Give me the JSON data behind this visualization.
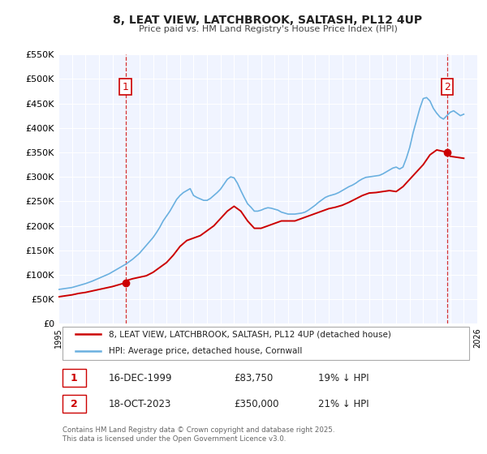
{
  "title": "8, LEAT VIEW, LATCHBROOK, SALTASH, PL12 4UP",
  "subtitle": "Price paid vs. HM Land Registry's House Price Index (HPI)",
  "background_color": "#ffffff",
  "plot_bg_color": "#f0f4ff",
  "grid_color": "#ffffff",
  "hpi_color": "#6ab0e0",
  "price_color": "#cc0000",
  "ylim": [
    0,
    550000
  ],
  "xlim_start": 1995.0,
  "xlim_end": 2026.0,
  "yticks": [
    0,
    50000,
    100000,
    150000,
    200000,
    250000,
    300000,
    350000,
    400000,
    450000,
    500000,
    550000
  ],
  "ytick_labels": [
    "£0",
    "£50K",
    "£100K",
    "£150K",
    "£200K",
    "£250K",
    "£300K",
    "£350K",
    "£400K",
    "£450K",
    "£500K",
    "£550K"
  ],
  "xticks": [
    1995,
    1996,
    1997,
    1998,
    1999,
    2000,
    2001,
    2002,
    2003,
    2004,
    2005,
    2006,
    2007,
    2008,
    2009,
    2010,
    2011,
    2012,
    2013,
    2014,
    2015,
    2016,
    2017,
    2018,
    2019,
    2020,
    2021,
    2022,
    2023,
    2024,
    2025,
    2026
  ],
  "marker1_x": 1999.96,
  "marker1_y": 83750,
  "marker1_label": "1",
  "marker1_vline_x": 1999.96,
  "marker2_x": 2023.8,
  "marker2_y": 350000,
  "marker2_label": "2",
  "marker2_vline_x": 2023.8,
  "legend_line1": "8, LEAT VIEW, LATCHBROOK, SALTASH, PL12 4UP (detached house)",
  "legend_line2": "HPI: Average price, detached house, Cornwall",
  "table_row1": [
    "1",
    "16-DEC-1999",
    "£83,750",
    "19% ↓ HPI"
  ],
  "table_row2": [
    "2",
    "18-OCT-2023",
    "£350,000",
    "21% ↓ HPI"
  ],
  "footer": "Contains HM Land Registry data © Crown copyright and database right 2025.\nThis data is licensed under the Open Government Licence v3.0.",
  "hpi_data_x": [
    1995.0,
    1995.25,
    1995.5,
    1995.75,
    1996.0,
    1996.25,
    1996.5,
    1996.75,
    1997.0,
    1997.25,
    1997.5,
    1997.75,
    1998.0,
    1998.25,
    1998.5,
    1998.75,
    1999.0,
    1999.25,
    1999.5,
    1999.75,
    2000.0,
    2000.25,
    2000.5,
    2000.75,
    2001.0,
    2001.25,
    2001.5,
    2001.75,
    2002.0,
    2002.25,
    2002.5,
    2002.75,
    2003.0,
    2003.25,
    2003.5,
    2003.75,
    2004.0,
    2004.25,
    2004.5,
    2004.75,
    2005.0,
    2005.25,
    2005.5,
    2005.75,
    2006.0,
    2006.25,
    2006.5,
    2006.75,
    2007.0,
    2007.25,
    2007.5,
    2007.75,
    2008.0,
    2008.25,
    2008.5,
    2008.75,
    2009.0,
    2009.25,
    2009.5,
    2009.75,
    2010.0,
    2010.25,
    2010.5,
    2010.75,
    2011.0,
    2011.25,
    2011.5,
    2011.75,
    2012.0,
    2012.25,
    2012.5,
    2012.75,
    2013.0,
    2013.25,
    2013.5,
    2013.75,
    2014.0,
    2014.25,
    2014.5,
    2014.75,
    2015.0,
    2015.25,
    2015.5,
    2015.75,
    2016.0,
    2016.25,
    2016.5,
    2016.75,
    2017.0,
    2017.25,
    2017.5,
    2017.75,
    2018.0,
    2018.25,
    2018.5,
    2018.75,
    2019.0,
    2019.25,
    2019.5,
    2019.75,
    2020.0,
    2020.25,
    2020.5,
    2020.75,
    2021.0,
    2021.25,
    2021.5,
    2021.75,
    2022.0,
    2022.25,
    2022.5,
    2022.75,
    2023.0,
    2023.25,
    2023.5,
    2023.75,
    2024.0,
    2024.25,
    2024.5,
    2024.75,
    2025.0
  ],
  "hpi_data_y": [
    70000,
    71000,
    72000,
    73000,
    74000,
    76000,
    78000,
    80000,
    82000,
    84500,
    87000,
    90000,
    93000,
    96000,
    99000,
    102000,
    106000,
    110000,
    114000,
    118000,
    122000,
    127000,
    132000,
    138000,
    144000,
    152000,
    160000,
    168000,
    176000,
    186000,
    197000,
    210000,
    220000,
    230000,
    242000,
    254000,
    262000,
    268000,
    272000,
    276000,
    262000,
    258000,
    255000,
    252000,
    252000,
    256000,
    262000,
    268000,
    275000,
    285000,
    295000,
    300000,
    298000,
    287000,
    272000,
    258000,
    245000,
    238000,
    230000,
    230000,
    232000,
    235000,
    237000,
    236000,
    234000,
    232000,
    228000,
    226000,
    224000,
    224000,
    224000,
    225000,
    226000,
    228000,
    232000,
    237000,
    242000,
    248000,
    253000,
    258000,
    261000,
    263000,
    265000,
    268000,
    272000,
    276000,
    280000,
    283000,
    287000,
    292000,
    296000,
    299000,
    300000,
    301000,
    302000,
    303000,
    306000,
    310000,
    314000,
    318000,
    320000,
    316000,
    320000,
    338000,
    360000,
    390000,
    415000,
    440000,
    460000,
    462000,
    455000,
    440000,
    430000,
    422000,
    418000,
    425000,
    432000,
    435000,
    430000,
    425000,
    428000
  ],
  "price_data_x": [
    1995.0,
    1995.5,
    1996.0,
    1996.5,
    1997.0,
    1997.5,
    1998.0,
    1998.5,
    1999.0,
    1999.5,
    1999.96,
    2000.0,
    2000.5,
    2001.0,
    2001.5,
    2002.0,
    2002.5,
    2003.0,
    2003.5,
    2004.0,
    2004.5,
    2005.0,
    2005.5,
    2006.0,
    2006.5,
    2007.0,
    2007.5,
    2008.0,
    2008.5,
    2009.0,
    2009.5,
    2010.0,
    2010.5,
    2011.0,
    2011.5,
    2012.0,
    2012.5,
    2013.0,
    2013.5,
    2014.0,
    2014.5,
    2015.0,
    2015.5,
    2016.0,
    2016.5,
    2017.0,
    2017.5,
    2018.0,
    2018.5,
    2019.0,
    2019.5,
    2020.0,
    2020.5,
    2021.0,
    2021.5,
    2022.0,
    2022.5,
    2023.0,
    2023.5,
    2023.8,
    2024.0,
    2024.5,
    2025.0
  ],
  "price_data_y": [
    55000,
    57000,
    59000,
    62000,
    64000,
    67000,
    70000,
    73000,
    76000,
    80000,
    83750,
    88000,
    92000,
    95000,
    98000,
    105000,
    115000,
    125000,
    140000,
    158000,
    170000,
    175000,
    180000,
    190000,
    200000,
    215000,
    230000,
    240000,
    230000,
    210000,
    195000,
    195000,
    200000,
    205000,
    210000,
    210000,
    210000,
    215000,
    220000,
    225000,
    230000,
    235000,
    238000,
    242000,
    248000,
    255000,
    262000,
    267000,
    268000,
    270000,
    272000,
    270000,
    280000,
    295000,
    310000,
    325000,
    345000,
    355000,
    352000,
    350000,
    342000,
    340000,
    338000
  ]
}
